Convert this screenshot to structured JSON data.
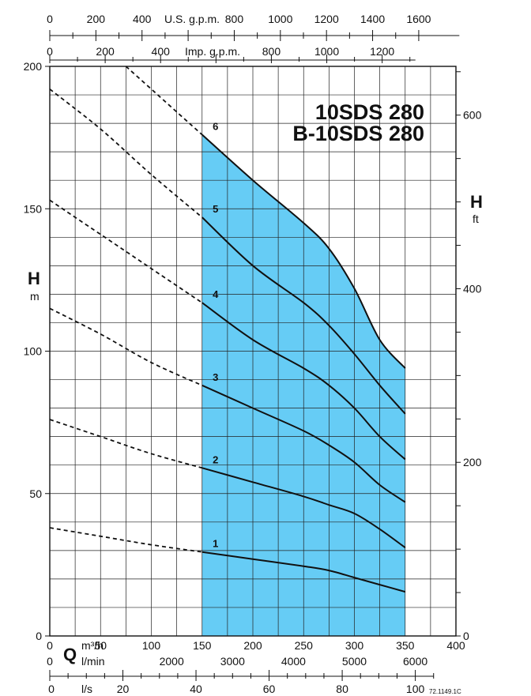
{
  "chart_data": {
    "type": "line",
    "title": [
      "10SDS 280",
      "B-10SDS 280"
    ],
    "x_axis": {
      "label": "Q",
      "unit": "m³/h",
      "range": [
        0,
        400
      ],
      "ticks": [
        0,
        50,
        100,
        150,
        200,
        250,
        300,
        350,
        400
      ]
    },
    "y_axis_left": {
      "label": "H",
      "unit": "m",
      "range": [
        0,
        200
      ],
      "ticks": [
        0,
        50,
        100,
        150,
        200
      ]
    },
    "y_axis_right": {
      "label": "H",
      "unit": "ft",
      "ticks": [
        0,
        200,
        400,
        600
      ]
    },
    "top_axis_usgpm": {
      "label": "U.S. g.p.m.",
      "ticks": [
        0,
        200,
        400,
        800,
        1000,
        1200,
        1400,
        1600
      ]
    },
    "top_axis_impgpm": {
      "label": "Imp. g.p.m.",
      "ticks": [
        0,
        200,
        400,
        800,
        1000,
        1200
      ]
    },
    "bottom_axis_lmin": {
      "unit": "l/min",
      "ticks": [
        0,
        2000,
        3000,
        4000,
        5000,
        6000
      ]
    },
    "bottom_axis_ls": {
      "unit": "l/s",
      "ticks": [
        0,
        20,
        40,
        60,
        80,
        100
      ]
    },
    "operating_range": {
      "x_from": 150,
      "x_to": 350,
      "color": "#66ccf5"
    },
    "series": [
      {
        "name": "1",
        "dashed": [
          [
            0,
            38
          ],
          [
            50,
            35
          ],
          [
            100,
            32
          ],
          [
            150,
            29.5
          ]
        ],
        "solid": [
          [
            150,
            29.5
          ],
          [
            200,
            27
          ],
          [
            250,
            24.5
          ],
          [
            275,
            23
          ],
          [
            300,
            20.5
          ],
          [
            325,
            18
          ],
          [
            350,
            15.5
          ]
        ]
      },
      {
        "name": "2",
        "dashed": [
          [
            0,
            76
          ],
          [
            50,
            70
          ],
          [
            100,
            64
          ],
          [
            150,
            59
          ]
        ],
        "solid": [
          [
            150,
            59
          ],
          [
            200,
            54
          ],
          [
            250,
            49
          ],
          [
            275,
            46
          ],
          [
            300,
            43
          ],
          [
            325,
            37.5
          ],
          [
            350,
            31
          ]
        ]
      },
      {
        "name": "3",
        "dashed": [
          [
            0,
            115
          ],
          [
            50,
            106
          ],
          [
            100,
            96
          ],
          [
            150,
            88
          ]
        ],
        "solid": [
          [
            150,
            88
          ],
          [
            200,
            80
          ],
          [
            250,
            72
          ],
          [
            275,
            67
          ],
          [
            300,
            61
          ],
          [
            325,
            53
          ],
          [
            350,
            47
          ]
        ]
      },
      {
        "name": "4",
        "dashed": [
          [
            0,
            153
          ],
          [
            50,
            141
          ],
          [
            100,
            129
          ],
          [
            150,
            117
          ]
        ],
        "solid": [
          [
            150,
            117
          ],
          [
            200,
            104
          ],
          [
            250,
            94
          ],
          [
            275,
            88
          ],
          [
            300,
            80
          ],
          [
            325,
            70
          ],
          [
            350,
            62
          ]
        ]
      },
      {
        "name": "5",
        "dashed": [
          [
            0,
            192
          ],
          [
            50,
            178
          ],
          [
            100,
            162
          ],
          [
            150,
            147
          ]
        ],
        "solid": [
          [
            150,
            147
          ],
          [
            200,
            130
          ],
          [
            250,
            117
          ],
          [
            275,
            109
          ],
          [
            300,
            99
          ],
          [
            325,
            88
          ],
          [
            350,
            78
          ]
        ]
      },
      {
        "name": "6",
        "dashed": [
          [
            75,
            200
          ],
          [
            100,
            192
          ],
          [
            150,
            176
          ]
        ],
        "solid": [
          [
            150,
            176
          ],
          [
            200,
            160
          ],
          [
            250,
            145
          ],
          [
            275,
            136
          ],
          [
            300,
            122
          ],
          [
            325,
            104
          ],
          [
            350,
            94
          ]
        ]
      }
    ],
    "code": "72.1149.1C"
  }
}
